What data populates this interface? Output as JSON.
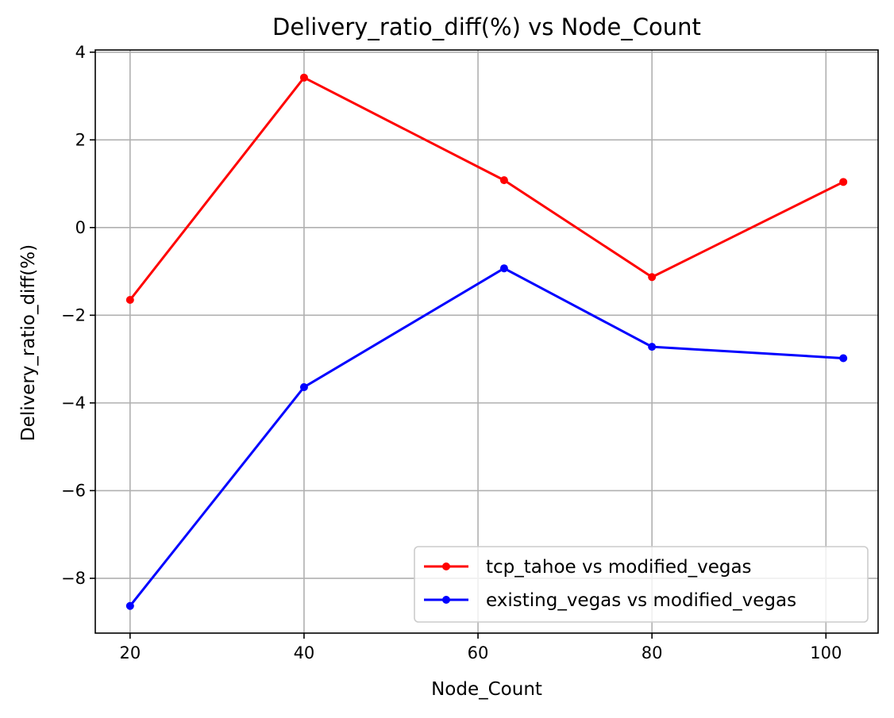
{
  "chart_data": {
    "type": "line",
    "title": "Delivery_ratio_diff(%) vs Node_Count",
    "xlabel": "Node_Count",
    "ylabel": "Delivery_ratio_diff(%)",
    "xlim": [
      16,
      106
    ],
    "ylim": [
      -9.25,
      4.05
    ],
    "xticks": [
      20,
      40,
      60,
      80,
      100
    ],
    "yticks": [
      4,
      2,
      0,
      -2,
      -4,
      -6,
      -8
    ],
    "xtick_labels": [
      "20",
      "40",
      "60",
      "80",
      "100"
    ],
    "ytick_labels": [
      "4",
      "2",
      "0",
      "−2",
      "−4",
      "−6",
      "−8"
    ],
    "grid": true,
    "legend_position": "lower-right",
    "series": [
      {
        "name": "tcp_tahoe vs modified_vegas",
        "color": "#ff0000",
        "x": [
          20,
          40,
          63,
          80,
          102
        ],
        "y": [
          -1.65,
          3.42,
          1.08,
          -1.13,
          1.04
        ]
      },
      {
        "name": "existing_vegas vs modified_vegas",
        "color": "#0000ff",
        "x": [
          20,
          40,
          63,
          80,
          102
        ],
        "y": [
          -8.63,
          -3.64,
          -0.93,
          -2.72,
          -2.98
        ]
      }
    ]
  }
}
